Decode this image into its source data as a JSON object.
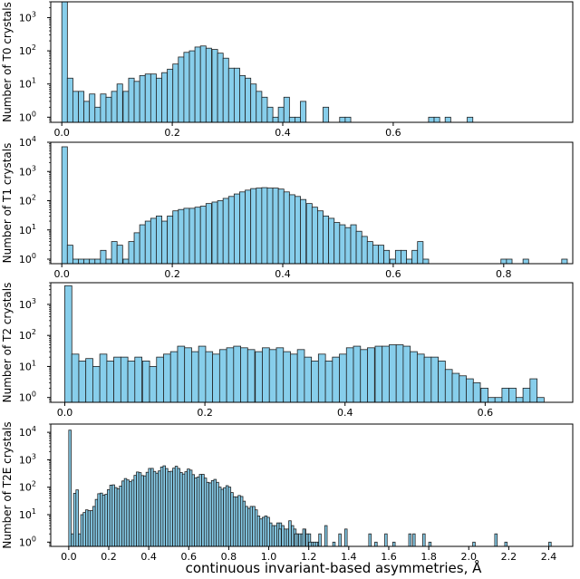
{
  "figure": {
    "xlabel": "continuous invariant-based asymmetries, Å",
    "bar_color": "#87ceeb",
    "edge_color": "#1f1f1f"
  },
  "chart_data": [
    {
      "type": "bar",
      "ylabel": "Number of T0 crystals",
      "yscale": "log",
      "ylim": [
        0.7,
        3000
      ],
      "yticks": [
        {
          "v": 1,
          "exp": "0"
        },
        {
          "v": 10,
          "exp": "1"
        },
        {
          "v": 100,
          "exp": "2"
        },
        {
          "v": 1000,
          "exp": "3"
        }
      ],
      "xlim": [
        -0.02,
        0.925
      ],
      "xticks": [
        0.0,
        0.2,
        0.4,
        0.6
      ],
      "bin_width": 0.0101,
      "bins": [
        {
          "x": 0.0,
          "y": 3800
        },
        {
          "x": 0.01,
          "y": 15
        },
        {
          "x": 0.02,
          "y": 6
        },
        {
          "x": 0.03,
          "y": 6
        },
        {
          "x": 0.04,
          "y": 3
        },
        {
          "x": 0.05,
          "y": 5
        },
        {
          "x": 0.06,
          "y": 2
        },
        {
          "x": 0.07,
          "y": 5
        },
        {
          "x": 0.08,
          "y": 4
        },
        {
          "x": 0.09,
          "y": 6
        },
        {
          "x": 0.1,
          "y": 10
        },
        {
          "x": 0.111,
          "y": 6
        },
        {
          "x": 0.121,
          "y": 15
        },
        {
          "x": 0.131,
          "y": 12
        },
        {
          "x": 0.141,
          "y": 18
        },
        {
          "x": 0.151,
          "y": 20
        },
        {
          "x": 0.161,
          "y": 20
        },
        {
          "x": 0.171,
          "y": 15
        },
        {
          "x": 0.181,
          "y": 22
        },
        {
          "x": 0.191,
          "y": 28
        },
        {
          "x": 0.201,
          "y": 40
        },
        {
          "x": 0.211,
          "y": 65
        },
        {
          "x": 0.221,
          "y": 90
        },
        {
          "x": 0.231,
          "y": 100
        },
        {
          "x": 0.241,
          "y": 130
        },
        {
          "x": 0.251,
          "y": 140
        },
        {
          "x": 0.261,
          "y": 120
        },
        {
          "x": 0.272,
          "y": 110
        },
        {
          "x": 0.282,
          "y": 85
        },
        {
          "x": 0.292,
          "y": 60
        },
        {
          "x": 0.302,
          "y": 30
        },
        {
          "x": 0.312,
          "y": 30
        },
        {
          "x": 0.322,
          "y": 18
        },
        {
          "x": 0.332,
          "y": 15
        },
        {
          "x": 0.342,
          "y": 10
        },
        {
          "x": 0.352,
          "y": 6
        },
        {
          "x": 0.362,
          "y": 4
        },
        {
          "x": 0.372,
          "y": 2
        },
        {
          "x": 0.382,
          "y": 1
        },
        {
          "x": 0.392,
          "y": 2
        },
        {
          "x": 0.402,
          "y": 4
        },
        {
          "x": 0.412,
          "y": 1
        },
        {
          "x": 0.422,
          "y": 1
        },
        {
          "x": 0.432,
          "y": 3
        },
        {
          "x": 0.473,
          "y": 2
        },
        {
          "x": 0.503,
          "y": 1
        },
        {
          "x": 0.513,
          "y": 1
        },
        {
          "x": 0.664,
          "y": 1
        },
        {
          "x": 0.674,
          "y": 1
        },
        {
          "x": 0.694,
          "y": 1
        },
        {
          "x": 0.734,
          "y": 1
        }
      ]
    },
    {
      "type": "bar",
      "ylabel": "Number of T1 crystals",
      "yscale": "log",
      "ylim": [
        0.7,
        10000
      ],
      "yticks": [
        {
          "v": 1,
          "exp": "0"
        },
        {
          "v": 10,
          "exp": "1"
        },
        {
          "v": 100,
          "exp": "2"
        },
        {
          "v": 1000,
          "exp": "3"
        },
        {
          "v": 10000,
          "exp": "4"
        }
      ],
      "xlim": [
        -0.02,
        0.925
      ],
      "xticks": [
        0.0,
        0.2,
        0.4,
        0.6,
        0.8
      ],
      "bin_width": 0.0101,
      "bins": [
        {
          "x": 0.0,
          "y": 7000
        },
        {
          "x": 0.01,
          "y": 3
        },
        {
          "x": 0.02,
          "y": 1
        },
        {
          "x": 0.03,
          "y": 1
        },
        {
          "x": 0.04,
          "y": 1
        },
        {
          "x": 0.05,
          "y": 1
        },
        {
          "x": 0.06,
          "y": 1
        },
        {
          "x": 0.07,
          "y": 2
        },
        {
          "x": 0.08,
          "y": 1
        },
        {
          "x": 0.09,
          "y": 4
        },
        {
          "x": 0.1,
          "y": 3
        },
        {
          "x": 0.111,
          "y": 1
        },
        {
          "x": 0.121,
          "y": 4
        },
        {
          "x": 0.131,
          "y": 8
        },
        {
          "x": 0.141,
          "y": 15
        },
        {
          "x": 0.151,
          "y": 20
        },
        {
          "x": 0.161,
          "y": 25
        },
        {
          "x": 0.171,
          "y": 30
        },
        {
          "x": 0.181,
          "y": 20
        },
        {
          "x": 0.191,
          "y": 30
        },
        {
          "x": 0.201,
          "y": 45
        },
        {
          "x": 0.211,
          "y": 50
        },
        {
          "x": 0.221,
          "y": 55
        },
        {
          "x": 0.231,
          "y": 55
        },
        {
          "x": 0.241,
          "y": 60
        },
        {
          "x": 0.251,
          "y": 65
        },
        {
          "x": 0.261,
          "y": 80
        },
        {
          "x": 0.272,
          "y": 90
        },
        {
          "x": 0.282,
          "y": 100
        },
        {
          "x": 0.292,
          "y": 120
        },
        {
          "x": 0.302,
          "y": 140
        },
        {
          "x": 0.312,
          "y": 170
        },
        {
          "x": 0.322,
          "y": 200
        },
        {
          "x": 0.332,
          "y": 230
        },
        {
          "x": 0.342,
          "y": 260
        },
        {
          "x": 0.352,
          "y": 270
        },
        {
          "x": 0.362,
          "y": 280
        },
        {
          "x": 0.372,
          "y": 270
        },
        {
          "x": 0.382,
          "y": 270
        },
        {
          "x": 0.392,
          "y": 250
        },
        {
          "x": 0.402,
          "y": 200
        },
        {
          "x": 0.412,
          "y": 160
        },
        {
          "x": 0.422,
          "y": 140
        },
        {
          "x": 0.432,
          "y": 110
        },
        {
          "x": 0.443,
          "y": 80
        },
        {
          "x": 0.453,
          "y": 60
        },
        {
          "x": 0.463,
          "y": 45
        },
        {
          "x": 0.473,
          "y": 30
        },
        {
          "x": 0.483,
          "y": 25
        },
        {
          "x": 0.493,
          "y": 18
        },
        {
          "x": 0.503,
          "y": 15
        },
        {
          "x": 0.513,
          "y": 12
        },
        {
          "x": 0.523,
          "y": 15
        },
        {
          "x": 0.533,
          "y": 9
        },
        {
          "x": 0.543,
          "y": 6
        },
        {
          "x": 0.553,
          "y": 4
        },
        {
          "x": 0.563,
          "y": 3
        },
        {
          "x": 0.573,
          "y": 3
        },
        {
          "x": 0.583,
          "y": 2
        },
        {
          "x": 0.594,
          "y": 1
        },
        {
          "x": 0.604,
          "y": 2
        },
        {
          "x": 0.614,
          "y": 2
        },
        {
          "x": 0.624,
          "y": 1
        },
        {
          "x": 0.634,
          "y": 2
        },
        {
          "x": 0.644,
          "y": 4
        },
        {
          "x": 0.654,
          "y": 1
        },
        {
          "x": 0.795,
          "y": 1
        },
        {
          "x": 0.805,
          "y": 1
        },
        {
          "x": 0.835,
          "y": 1
        },
        {
          "x": 0.905,
          "y": 1
        }
      ]
    },
    {
      "type": "bar",
      "ylabel": "Number of T2 crystals",
      "yscale": "log",
      "ylim": [
        0.7,
        5000
      ],
      "yticks": [
        {
          "v": 1,
          "exp": "0"
        },
        {
          "v": 10,
          "exp": "1"
        },
        {
          "v": 100,
          "exp": "2"
        },
        {
          "v": 1000,
          "exp": "3"
        }
      ],
      "xlim": [
        -0.02,
        0.725
      ],
      "xticks": [
        0.0,
        0.2,
        0.4,
        0.6
      ],
      "bin_width": 0.0101,
      "bins": [
        {
          "x": 0.0,
          "y": 4000
        },
        {
          "x": 0.01,
          "y": 25
        },
        {
          "x": 0.02,
          "y": 15
        },
        {
          "x": 0.03,
          "y": 18
        },
        {
          "x": 0.04,
          "y": 10
        },
        {
          "x": 0.05,
          "y": 25
        },
        {
          "x": 0.06,
          "y": 15
        },
        {
          "x": 0.07,
          "y": 20
        },
        {
          "x": 0.08,
          "y": 20
        },
        {
          "x": 0.09,
          "y": 15
        },
        {
          "x": 0.1,
          "y": 20
        },
        {
          "x": 0.111,
          "y": 15
        },
        {
          "x": 0.121,
          "y": 10
        },
        {
          "x": 0.131,
          "y": 20
        },
        {
          "x": 0.141,
          "y": 25
        },
        {
          "x": 0.151,
          "y": 30
        },
        {
          "x": 0.161,
          "y": 45
        },
        {
          "x": 0.171,
          "y": 40
        },
        {
          "x": 0.181,
          "y": 30
        },
        {
          "x": 0.191,
          "y": 45
        },
        {
          "x": 0.201,
          "y": 30
        },
        {
          "x": 0.211,
          "y": 25
        },
        {
          "x": 0.221,
          "y": 35
        },
        {
          "x": 0.231,
          "y": 40
        },
        {
          "x": 0.241,
          "y": 45
        },
        {
          "x": 0.251,
          "y": 40
        },
        {
          "x": 0.261,
          "y": 35
        },
        {
          "x": 0.272,
          "y": 30
        },
        {
          "x": 0.282,
          "y": 40
        },
        {
          "x": 0.292,
          "y": 35
        },
        {
          "x": 0.302,
          "y": 40
        },
        {
          "x": 0.312,
          "y": 30
        },
        {
          "x": 0.322,
          "y": 25
        },
        {
          "x": 0.332,
          "y": 35
        },
        {
          "x": 0.342,
          "y": 20
        },
        {
          "x": 0.352,
          "y": 15
        },
        {
          "x": 0.362,
          "y": 25
        },
        {
          "x": 0.372,
          "y": 15
        },
        {
          "x": 0.382,
          "y": 20
        },
        {
          "x": 0.392,
          "y": 25
        },
        {
          "x": 0.402,
          "y": 40
        },
        {
          "x": 0.412,
          "y": 45
        },
        {
          "x": 0.422,
          "y": 35
        },
        {
          "x": 0.432,
          "y": 40
        },
        {
          "x": 0.443,
          "y": 45
        },
        {
          "x": 0.453,
          "y": 45
        },
        {
          "x": 0.463,
          "y": 50
        },
        {
          "x": 0.473,
          "y": 50
        },
        {
          "x": 0.483,
          "y": 45
        },
        {
          "x": 0.493,
          "y": 30
        },
        {
          "x": 0.503,
          "y": 25
        },
        {
          "x": 0.513,
          "y": 20
        },
        {
          "x": 0.523,
          "y": 20
        },
        {
          "x": 0.533,
          "y": 15
        },
        {
          "x": 0.543,
          "y": 8
        },
        {
          "x": 0.553,
          "y": 6
        },
        {
          "x": 0.563,
          "y": 5
        },
        {
          "x": 0.573,
          "y": 4
        },
        {
          "x": 0.583,
          "y": 3
        },
        {
          "x": 0.594,
          "y": 2
        },
        {
          "x": 0.604,
          "y": 1
        },
        {
          "x": 0.614,
          "y": 1
        },
        {
          "x": 0.624,
          "y": 2
        },
        {
          "x": 0.634,
          "y": 2
        },
        {
          "x": 0.644,
          "y": 1
        },
        {
          "x": 0.654,
          "y": 2
        },
        {
          "x": 0.664,
          "y": 4
        },
        {
          "x": 0.674,
          "y": 1
        }
      ]
    },
    {
      "type": "bar",
      "ylabel": "Number of T2E crystals",
      "yscale": "log",
      "ylim": [
        0.7,
        20000
      ],
      "yticks": [
        {
          "v": 1,
          "exp": "0"
        },
        {
          "v": 10,
          "exp": "1"
        },
        {
          "v": 100,
          "exp": "2"
        },
        {
          "v": 1000,
          "exp": "3"
        },
        {
          "v": 10000,
          "exp": "4"
        }
      ],
      "xlim": [
        -0.09,
        2.52
      ],
      "xticks": [
        0.0,
        0.2,
        0.4,
        0.6,
        0.8,
        1.0,
        1.2,
        1.4,
        1.6,
        1.8,
        2.0,
        2.2,
        2.4
      ],
      "bin_width": 0.0121,
      "peak_bins": [
        {
          "x": 0.0,
          "y": 12000
        },
        {
          "x": 0.012,
          "y": 2
        },
        {
          "x": 0.024,
          "y": 60
        },
        {
          "x": 0.036,
          "y": 80
        },
        {
          "x": 0.048,
          "y": 2
        },
        {
          "x": 0.06,
          "y": 10
        }
      ],
      "envelope": [
        [
          0.06,
          8
        ],
        [
          0.1,
          15
        ],
        [
          0.15,
          50
        ],
        [
          0.2,
          90
        ],
        [
          0.25,
          120
        ],
        [
          0.3,
          200
        ],
        [
          0.35,
          300
        ],
        [
          0.4,
          380
        ],
        [
          0.45,
          450
        ],
        [
          0.5,
          480
        ],
        [
          0.55,
          420
        ],
        [
          0.6,
          350
        ],
        [
          0.65,
          250
        ],
        [
          0.7,
          180
        ],
        [
          0.75,
          120
        ],
        [
          0.8,
          80
        ],
        [
          0.85,
          40
        ],
        [
          0.9,
          20
        ],
        [
          0.95,
          10
        ],
        [
          1.0,
          6
        ],
        [
          1.05,
          4
        ],
        [
          1.1,
          3
        ],
        [
          1.15,
          2
        ],
        [
          1.2,
          2
        ],
        [
          1.25,
          1
        ]
      ],
      "scatter_bins": [
        {
          "x": 1.05,
          "y": 3
        },
        {
          "x": 1.1,
          "y": 6
        },
        {
          "x": 1.13,
          "y": 2
        },
        {
          "x": 1.17,
          "y": 3
        },
        {
          "x": 1.2,
          "y": 1
        },
        {
          "x": 1.25,
          "y": 2
        },
        {
          "x": 1.28,
          "y": 4
        },
        {
          "x": 1.32,
          "y": 1
        },
        {
          "x": 1.35,
          "y": 2
        },
        {
          "x": 1.38,
          "y": 3
        },
        {
          "x": 1.5,
          "y": 2
        },
        {
          "x": 1.53,
          "y": 1
        },
        {
          "x": 1.58,
          "y": 2
        },
        {
          "x": 1.62,
          "y": 1
        },
        {
          "x": 1.7,
          "y": 2
        },
        {
          "x": 1.72,
          "y": 2
        },
        {
          "x": 1.77,
          "y": 2
        },
        {
          "x": 1.8,
          "y": 1
        },
        {
          "x": 2.02,
          "y": 1
        },
        {
          "x": 2.13,
          "y": 2
        },
        {
          "x": 2.18,
          "y": 1
        },
        {
          "x": 2.4,
          "y": 1
        }
      ]
    }
  ]
}
